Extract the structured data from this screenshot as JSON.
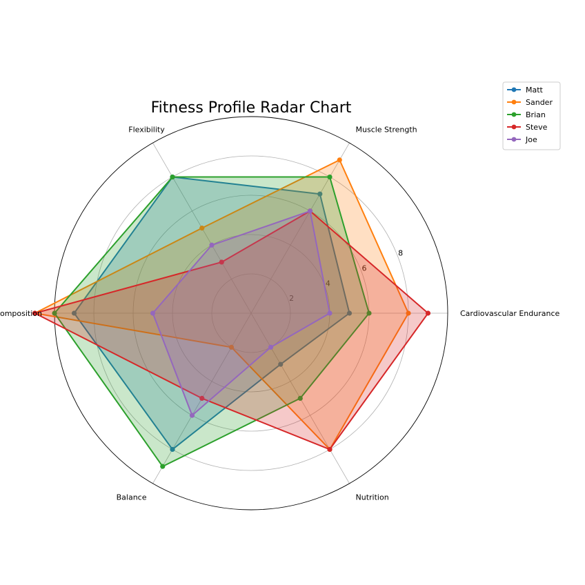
{
  "chart_data": {
    "type": "radar",
    "title": "Fitness Profile Radar Chart",
    "categories": [
      "Cardiovascular Endurance",
      "Muscle Strength",
      "Flexibility",
      "Body Composition",
      "Balance",
      "Nutrition"
    ],
    "rlim": [
      0,
      10
    ],
    "rticks": [
      2,
      4,
      6,
      8
    ],
    "rtick_labels": [
      "2",
      "4",
      "6",
      "8"
    ],
    "grid": true,
    "legend_position": "upper-right outside",
    "series": [
      {
        "name": "Matt",
        "color": "#1f77b4",
        "values": [
          5,
          7,
          8,
          9,
          8,
          3
        ]
      },
      {
        "name": "Sander",
        "color": "#ff7f0e",
        "values": [
          8,
          9,
          5,
          11,
          2,
          8
        ]
      },
      {
        "name": "Brian",
        "color": "#2ca02c",
        "values": [
          6,
          8,
          8,
          10,
          9,
          5
        ]
      },
      {
        "name": "Steve",
        "color": "#d62728",
        "values": [
          9,
          6,
          3,
          11,
          5,
          8
        ]
      },
      {
        "name": "Joe",
        "color": "#9467bd",
        "values": [
          4,
          6,
          4,
          5,
          6,
          2
        ]
      }
    ]
  }
}
